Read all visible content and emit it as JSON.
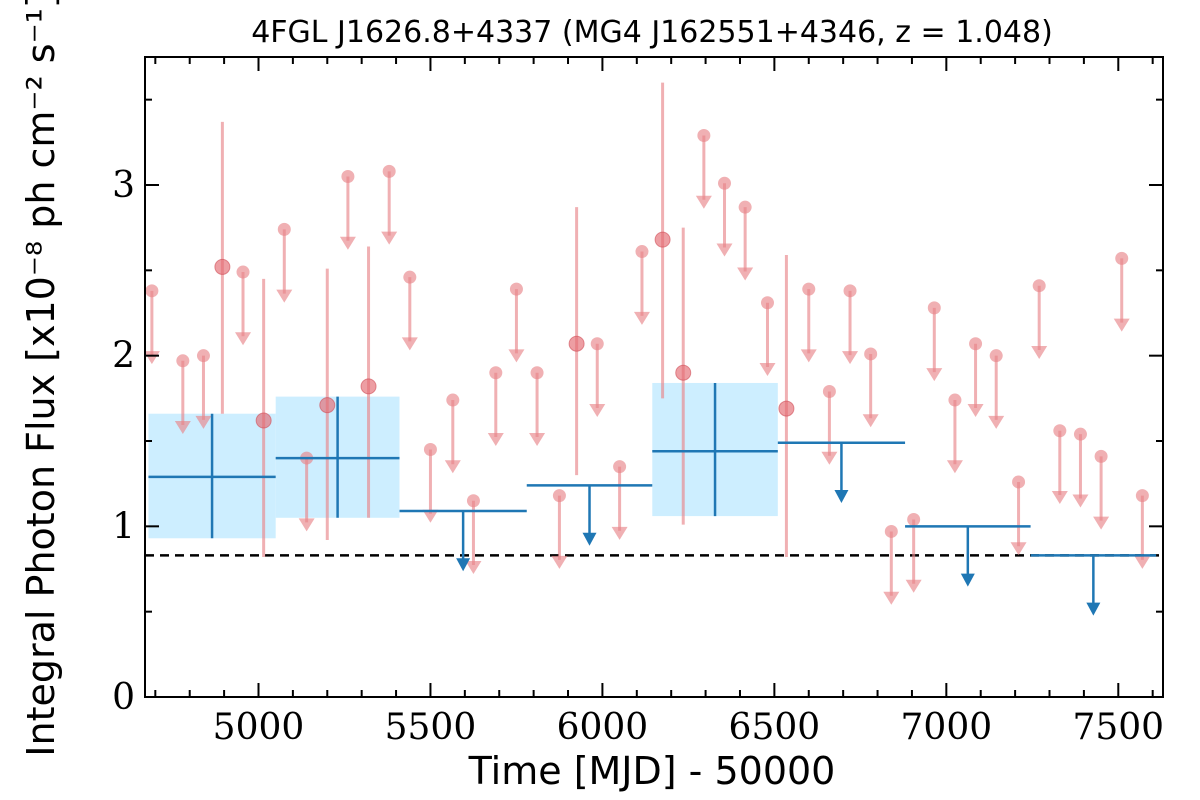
{
  "chart_data": {
    "type": "scatter",
    "title": "4FGL J1626.8+4337 (MG4 J162551+4346, z = 1.048)",
    "xlabel": "Time [MJD] - 50000",
    "ylabel": "Integral Photon Flux [x10⁻⁸ ph cm⁻² s⁻¹]",
    "xlim": [
      4670,
      7630
    ],
    "ylim": [
      0,
      3.75
    ],
    "xticks": [
      5000,
      5500,
      6000,
      6500,
      7000,
      7500
    ],
    "yticks": [
      0,
      1,
      2,
      3
    ],
    "grid": false,
    "reference_line": {
      "y": 0.83,
      "style": "dashed",
      "color": "#000000"
    },
    "series": [
      {
        "kind": "short-bin detections",
        "color": "#e8858a",
        "points": [
          {
            "x": 4895,
            "y": 2.52,
            "ylo": 1.66,
            "yhi": 3.37
          },
          {
            "x": 5015,
            "y": 1.62,
            "ylo": 0.82,
            "yhi": 2.45
          },
          {
            "x": 5200,
            "y": 1.71,
            "ylo": 0.92,
            "yhi": 2.51
          },
          {
            "x": 5320,
            "y": 1.82,
            "ylo": 1.05,
            "yhi": 2.64
          },
          {
            "x": 5925,
            "y": 2.07,
            "ylo": 1.3,
            "yhi": 2.87
          },
          {
            "x": 6175,
            "y": 2.68,
            "ylo": 1.75,
            "yhi": 3.6
          },
          {
            "x": 6235,
            "y": 1.9,
            "ylo": 1.01,
            "yhi": 2.75
          },
          {
            "x": 6535,
            "y": 1.69,
            "ylo": 0.82,
            "yhi": 2.59
          }
        ]
      },
      {
        "kind": "short-bin upper limits",
        "color": "#e8858a",
        "points": [
          {
            "x": 4690,
            "y": 2.38
          },
          {
            "x": 4780,
            "y": 1.97
          },
          {
            "x": 4840,
            "y": 2.0
          },
          {
            "x": 4955,
            "y": 2.49
          },
          {
            "x": 5075,
            "y": 2.74
          },
          {
            "x": 5140,
            "y": 1.4
          },
          {
            "x": 5260,
            "y": 3.05
          },
          {
            "x": 5380,
            "y": 3.08
          },
          {
            "x": 5440,
            "y": 2.46
          },
          {
            "x": 5500,
            "y": 1.45
          },
          {
            "x": 5565,
            "y": 1.74
          },
          {
            "x": 5625,
            "y": 1.15
          },
          {
            "x": 5690,
            "y": 1.9
          },
          {
            "x": 5750,
            "y": 2.39
          },
          {
            "x": 5810,
            "y": 1.9
          },
          {
            "x": 5875,
            "y": 1.18
          },
          {
            "x": 5985,
            "y": 2.07
          },
          {
            "x": 6050,
            "y": 1.35
          },
          {
            "x": 6115,
            "y": 2.61
          },
          {
            "x": 6295,
            "y": 3.29
          },
          {
            "x": 6355,
            "y": 3.01
          },
          {
            "x": 6415,
            "y": 2.87
          },
          {
            "x": 6480,
            "y": 2.31
          },
          {
            "x": 6600,
            "y": 2.39
          },
          {
            "x": 6660,
            "y": 1.79
          },
          {
            "x": 6720,
            "y": 2.38
          },
          {
            "x": 6780,
            "y": 2.01
          },
          {
            "x": 6840,
            "y": 0.97
          },
          {
            "x": 6905,
            "y": 1.04
          },
          {
            "x": 6965,
            "y": 2.28
          },
          {
            "x": 7025,
            "y": 1.74
          },
          {
            "x": 7085,
            "y": 2.07
          },
          {
            "x": 7145,
            "y": 2.0
          },
          {
            "x": 7210,
            "y": 1.26
          },
          {
            "x": 7270,
            "y": 2.41
          },
          {
            "x": 7330,
            "y": 1.56
          },
          {
            "x": 7390,
            "y": 1.54
          },
          {
            "x": 7450,
            "y": 1.41
          },
          {
            "x": 7510,
            "y": 2.57
          },
          {
            "x": 7570,
            "y": 1.18
          }
        ]
      },
      {
        "kind": "long-bin detections",
        "color": "#1f77b4",
        "band_color": "#cdeeff",
        "bins": [
          {
            "x0": 4680,
            "x1": 5050,
            "y": 1.29,
            "ylo": 0.93,
            "yhi": 1.66
          },
          {
            "x0": 5050,
            "x1": 5410,
            "y": 1.4,
            "ylo": 1.05,
            "yhi": 1.76
          },
          {
            "x0": 6145,
            "x1": 6510,
            "y": 1.44,
            "ylo": 1.06,
            "yhi": 1.84
          }
        ]
      },
      {
        "kind": "long-bin upper limits",
        "color": "#1f77b4",
        "bins": [
          {
            "x0": 5410,
            "x1": 5780,
            "y": 1.09
          },
          {
            "x0": 5780,
            "x1": 6145,
            "y": 1.24
          },
          {
            "x0": 6510,
            "x1": 6880,
            "y": 1.49
          },
          {
            "x0": 6880,
            "x1": 7245,
            "y": 1.0
          },
          {
            "x0": 7245,
            "x1": 7610,
            "y": 0.83
          }
        ]
      }
    ]
  }
}
